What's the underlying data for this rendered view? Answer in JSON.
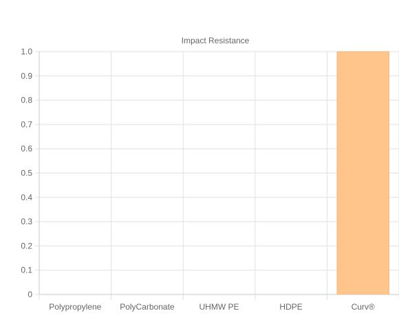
{
  "chart_data": {
    "type": "bar",
    "title": "Impact Resistance",
    "categories": [
      "Polypropylene",
      "PolyCarbonate",
      "UHMW PE",
      "HDPE",
      "Curv®"
    ],
    "series": [
      {
        "values": [
          0,
          0,
          0,
          0,
          1.0
        ]
      }
    ],
    "ylim": [
      0,
      1.0
    ],
    "yticks": [
      "0",
      "0.1",
      "0.2",
      "0.3",
      "0.4",
      "0.5",
      "0.6",
      "0.7",
      "0.8",
      "0.9",
      "1.0"
    ],
    "grid": true,
    "legend": "none",
    "colors": {
      "bar_fill": "#ffc58a",
      "bar_stroke": "#ffb366",
      "grid": "#e0e0e0",
      "axis": "#c8c8c8",
      "text": "#666666"
    }
  }
}
